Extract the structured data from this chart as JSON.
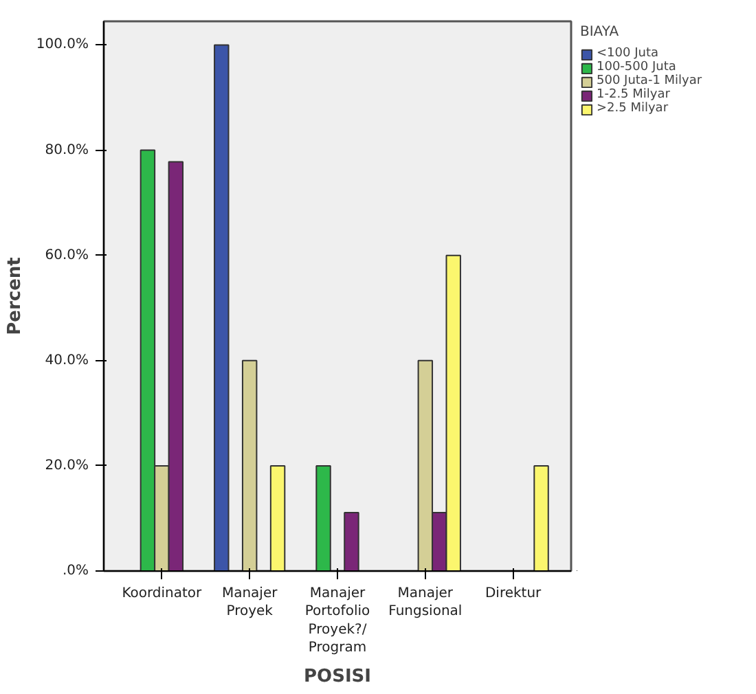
{
  "chart_data": {
    "type": "bar",
    "xlabel": "POSISI",
    "ylabel": "Percent",
    "legend_title": "BIAYA",
    "legend": "right",
    "categories": [
      "Koordinator",
      "Manajer\nProyek",
      "Manajer\nPortofolio\nProyek?/\nProgram",
      "Manajer\nFungsional",
      "Direktur"
    ],
    "series": [
      {
        "name": "<100 Juta",
        "color": "#3c55a8",
        "values": [
          null,
          100,
          null,
          null,
          null
        ]
      },
      {
        "name": "100-500 Juta",
        "color": "#2db84a",
        "values": [
          80,
          null,
          20,
          null,
          null
        ]
      },
      {
        "name": "500 Juta-1 Milyar",
        "color": "#d4cf96",
        "values": [
          20,
          40,
          null,
          40,
          null
        ]
      },
      {
        "name": "1-2.5 Milyar",
        "color": "#7a2677",
        "values": [
          77.8,
          null,
          11.1,
          11.1,
          null
        ]
      },
      {
        "name": ">2.5 Milyar",
        "color": "#fbf66e",
        "values": [
          null,
          20,
          null,
          60,
          20
        ]
      }
    ],
    "ylim": [
      0,
      104.5
    ],
    "yticks": [
      {
        "value": 0,
        "label": ".0%"
      },
      {
        "value": 20,
        "label": "20.0%"
      },
      {
        "value": 40,
        "label": "40.0%"
      },
      {
        "value": 60,
        "label": "60.0%"
      },
      {
        "value": 80,
        "label": "80.0%"
      },
      {
        "value": 100,
        "label": "100.0%"
      }
    ],
    "grid": false
  }
}
